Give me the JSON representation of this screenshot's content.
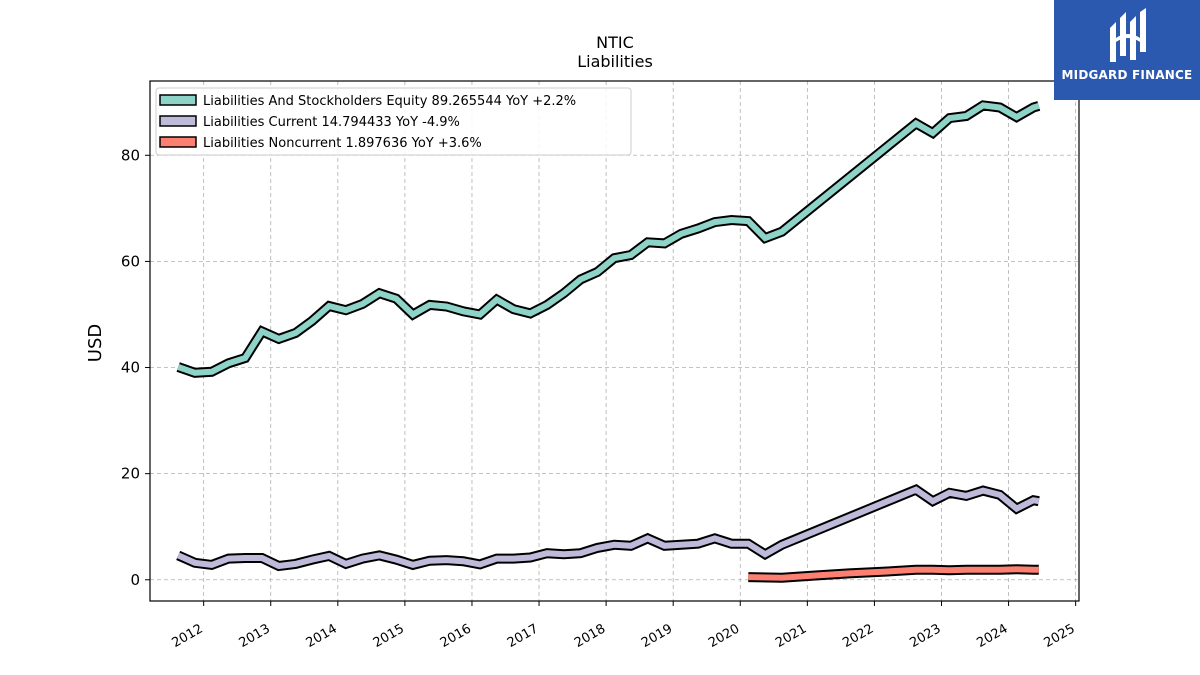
{
  "brand": {
    "name": "MIDGARD FINANCE",
    "color": "#2b59b0",
    "icon": "midgard-logo-icon"
  },
  "chart_data": {
    "type": "line",
    "title": "NTIC",
    "subtitle": "Liabilities",
    "xlabel": "",
    "ylabel": "USD",
    "xlim": [
      2011.2,
      2025.05
    ],
    "ylim": [
      -4,
      94
    ],
    "yticks": [
      0,
      20,
      40,
      60,
      80
    ],
    "xticks": [
      "2012",
      "2013",
      "2014",
      "2015",
      "2016",
      "2017",
      "2018",
      "2019",
      "2020",
      "2021",
      "2022",
      "2023",
      "2024",
      "2025"
    ],
    "grid": true,
    "legend_position": "top-left",
    "series": [
      {
        "name": "Liabilities And Stockholders Equity  89.265544 YoY +2.2%",
        "color": "#8dd3c7",
        "x": [
          2011.62,
          2011.87,
          2012.12,
          2012.37,
          2012.62,
          2012.87,
          2013.12,
          2013.37,
          2013.62,
          2013.87,
          2014.12,
          2014.37,
          2014.62,
          2014.87,
          2015.12,
          2015.37,
          2015.62,
          2015.87,
          2016.12,
          2016.37,
          2016.62,
          2016.87,
          2017.12,
          2017.37,
          2017.62,
          2017.87,
          2018.12,
          2018.37,
          2018.62,
          2018.87,
          2019.12,
          2019.37,
          2019.62,
          2019.87,
          2020.12,
          2020.37,
          2020.62,
          2022.62,
          2022.87,
          2023.12,
          2023.37,
          2023.62,
          2023.87,
          2024.12,
          2024.37,
          2024.45
        ],
        "values": [
          40.1,
          39.0,
          39.2,
          40.8,
          41.8,
          46.8,
          45.4,
          46.5,
          48.8,
          51.6,
          50.8,
          52.0,
          54.0,
          53.0,
          50.0,
          51.8,
          51.5,
          50.6,
          50.0,
          52.8,
          51.0,
          50.2,
          51.8,
          54.0,
          56.6,
          58.0,
          60.6,
          61.2,
          63.6,
          63.4,
          65.2,
          66.2,
          67.4,
          67.8,
          67.6,
          64.4,
          65.6,
          86.0,
          84.2,
          87.0,
          87.4,
          89.4,
          89.0,
          87.2,
          89.0,
          89.3
        ]
      },
      {
        "name": "Liabilities Current  14.794433 YoY -4.9%",
        "color": "#bebada",
        "x": [
          2011.62,
          2011.87,
          2012.12,
          2012.37,
          2012.62,
          2012.87,
          2013.12,
          2013.37,
          2013.62,
          2013.87,
          2014.12,
          2014.37,
          2014.62,
          2014.87,
          2015.12,
          2015.37,
          2015.62,
          2015.87,
          2016.12,
          2016.37,
          2016.62,
          2016.87,
          2017.12,
          2017.37,
          2017.62,
          2017.87,
          2018.12,
          2018.37,
          2018.62,
          2018.87,
          2019.12,
          2019.37,
          2019.62,
          2019.87,
          2020.12,
          2020.37,
          2020.62,
          2022.62,
          2022.87,
          2023.12,
          2023.37,
          2023.62,
          2023.87,
          2024.12,
          2024.37,
          2024.45
        ],
        "values": [
          4.6,
          3.2,
          2.8,
          4.0,
          4.1,
          4.1,
          2.6,
          3.0,
          3.8,
          4.5,
          3.0,
          4.0,
          4.6,
          3.8,
          2.8,
          3.6,
          3.7,
          3.5,
          2.9,
          4.0,
          4.0,
          4.2,
          5.0,
          4.8,
          5.0,
          6.0,
          6.6,
          6.4,
          7.8,
          6.4,
          6.6,
          6.8,
          7.8,
          6.8,
          6.8,
          4.8,
          6.6,
          17.0,
          14.8,
          16.4,
          15.8,
          16.8,
          16.0,
          13.4,
          15.0,
          14.8
        ]
      },
      {
        "name": "Liabilities Noncurrent  1.897636 YoY +3.6%",
        "color": "#fb8072",
        "x": [
          2020.12,
          2020.62,
          2021.12,
          2021.62,
          2022.12,
          2022.62,
          2022.87,
          2023.12,
          2023.37,
          2023.62,
          2023.87,
          2024.12,
          2024.37,
          2024.45
        ],
        "values": [
          0.5,
          0.4,
          0.8,
          1.2,
          1.5,
          1.9,
          1.9,
          1.8,
          1.9,
          1.9,
          1.9,
          2.0,
          1.9,
          1.9
        ]
      }
    ]
  }
}
